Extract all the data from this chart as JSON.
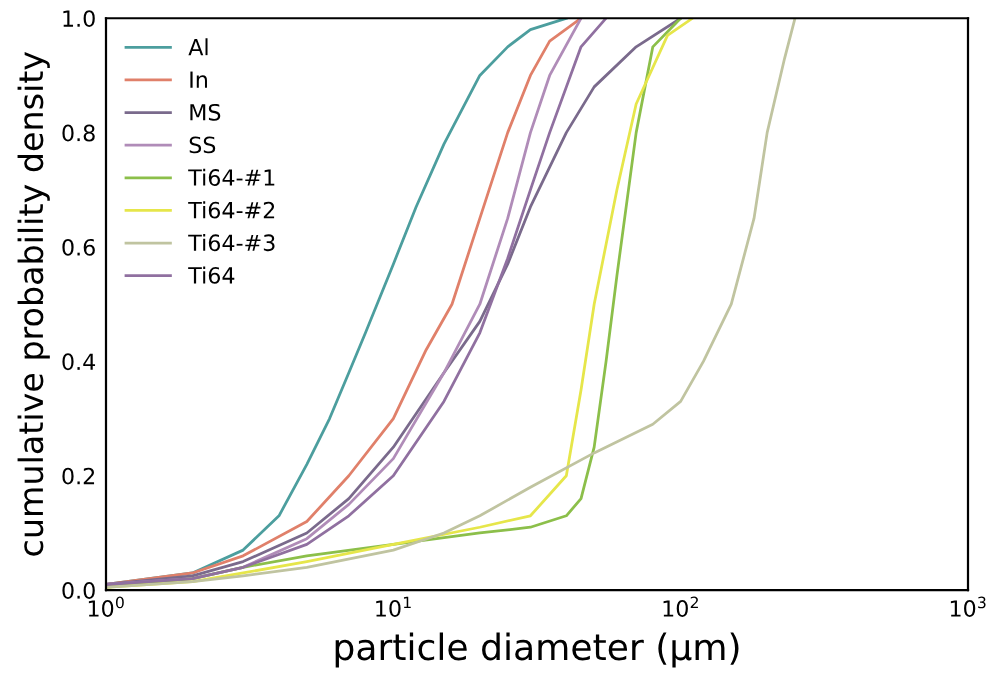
{
  "chart_data": {
    "type": "line",
    "xlabel": "particle diameter (μm)",
    "ylabel": "cumulative probability density",
    "log": "x",
    "xlim": [
      1,
      1000
    ],
    "ylim": [
      0,
      1
    ],
    "xticks": [
      {
        "value": 1,
        "label": "10$^{0}$"
      },
      {
        "value": 10,
        "label": "10$^{1}$"
      },
      {
        "value": 100,
        "label": "10$^{2}$"
      },
      {
        "value": 1000,
        "label": "10$^{3}$"
      }
    ],
    "yticks": [
      {
        "value": 0,
        "label": "0.0"
      },
      {
        "value": 0.2,
        "label": "0.2"
      },
      {
        "value": 0.4,
        "label": "0.4"
      },
      {
        "value": 0.6,
        "label": "0.6"
      },
      {
        "value": 0.8,
        "label": "0.8"
      },
      {
        "value": 1,
        "label": "1.0"
      }
    ],
    "legend": "top left",
    "grid": false,
    "marker": "none",
    "line_style": "solid",
    "series": [
      {
        "name": "Al",
        "color": "#4c9e9e",
        "x": [
          1,
          2,
          3,
          4,
          5,
          6,
          7,
          8,
          10,
          12,
          15,
          20,
          25,
          30,
          40
        ],
        "values": [
          0.01,
          0.03,
          0.07,
          0.13,
          0.22,
          0.3,
          0.38,
          0.45,
          0.57,
          0.67,
          0.78,
          0.9,
          0.95,
          0.98,
          1.0
        ]
      },
      {
        "name": "In",
        "color": "#e0806a",
        "x": [
          1,
          2,
          3,
          5,
          7,
          10,
          13,
          16,
          20,
          25,
          30,
          35,
          45
        ],
        "values": [
          0.01,
          0.03,
          0.06,
          0.12,
          0.2,
          0.3,
          0.42,
          0.5,
          0.65,
          0.8,
          0.9,
          0.96,
          1.0
        ]
      },
      {
        "name": "MS",
        "color": "#7a6a8c",
        "x": [
          1,
          2,
          3,
          5,
          7,
          10,
          15,
          20,
          25,
          30,
          40,
          50,
          70,
          100
        ],
        "values": [
          0.01,
          0.025,
          0.05,
          0.1,
          0.16,
          0.25,
          0.38,
          0.47,
          0.57,
          0.67,
          0.8,
          0.88,
          0.95,
          1.0
        ]
      },
      {
        "name": "SS",
        "color": "#b08cb8",
        "x": [
          1,
          2,
          3,
          5,
          7,
          10,
          15,
          20,
          25,
          30,
          35,
          45
        ],
        "values": [
          0.01,
          0.02,
          0.04,
          0.09,
          0.15,
          0.23,
          0.38,
          0.5,
          0.65,
          0.8,
          0.9,
          1.0
        ]
      },
      {
        "name": "Ti64-#1",
        "color": "#8cbf4a",
        "x": [
          1,
          2,
          3,
          5,
          10,
          20,
          30,
          40,
          45,
          50,
          55,
          60,
          70,
          80,
          100
        ],
        "values": [
          0.005,
          0.02,
          0.04,
          0.06,
          0.08,
          0.1,
          0.11,
          0.13,
          0.16,
          0.25,
          0.4,
          0.55,
          0.8,
          0.95,
          1.0
        ]
      },
      {
        "name": "Ti64-#2",
        "color": "#e6e64a",
        "x": [
          1,
          2,
          3,
          5,
          10,
          20,
          30,
          40,
          45,
          50,
          60,
          70,
          90,
          110
        ],
        "values": [
          0.005,
          0.015,
          0.03,
          0.05,
          0.08,
          0.11,
          0.13,
          0.2,
          0.35,
          0.5,
          0.7,
          0.85,
          0.97,
          1.0
        ]
      },
      {
        "name": "Ti64-#3",
        "color": "#c0c4a0",
        "x": [
          1,
          2,
          3,
          5,
          10,
          15,
          20,
          30,
          50,
          80,
          100,
          120,
          150,
          180,
          200,
          230,
          250
        ],
        "values": [
          0.005,
          0.015,
          0.025,
          0.04,
          0.07,
          0.1,
          0.13,
          0.18,
          0.24,
          0.29,
          0.33,
          0.4,
          0.5,
          0.65,
          0.8,
          0.93,
          1.0
        ]
      },
      {
        "name": "Ti64",
        "color": "#9070a0",
        "x": [
          1,
          2,
          3,
          5,
          7,
          10,
          15,
          20,
          25,
          30,
          35,
          45,
          55
        ],
        "values": [
          0.01,
          0.02,
          0.04,
          0.08,
          0.13,
          0.2,
          0.33,
          0.45,
          0.58,
          0.7,
          0.8,
          0.95,
          1.0
        ]
      }
    ]
  }
}
